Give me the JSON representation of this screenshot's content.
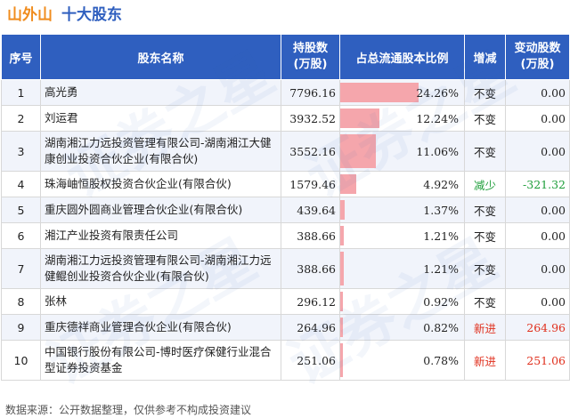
{
  "header": {
    "stock_name": "山外山",
    "subtitle": "十大股东"
  },
  "columns": [
    "序号",
    "股东名称",
    "持股数\n(万股)",
    "占总流通股本比例",
    "增减",
    "变动股数\n(万股)"
  ],
  "rows": [
    {
      "rank": "1",
      "name": "高光勇",
      "shares": "7796.16",
      "ratio_text": "24.26%",
      "ratio": 24.26,
      "change": "不变",
      "change_type": "same",
      "delta": "0.00"
    },
    {
      "rank": "2",
      "name": "刘运君",
      "shares": "3932.52",
      "ratio_text": "12.24%",
      "ratio": 12.24,
      "change": "不变",
      "change_type": "same",
      "delta": "0.00"
    },
    {
      "rank": "3",
      "name": "湖南湘江力远投资管理有限公司-湖南湘江大健康创业投资合伙企业(有限合伙)",
      "shares": "3552.16",
      "ratio_text": "11.06%",
      "ratio": 11.06,
      "change": "不变",
      "change_type": "same",
      "delta": "0.00"
    },
    {
      "rank": "4",
      "name": "珠海岫恒股权投资合伙企业(有限合伙)",
      "shares": "1579.46",
      "ratio_text": "4.92%",
      "ratio": 4.92,
      "change": "减少",
      "change_type": "down",
      "delta": "-321.32"
    },
    {
      "rank": "5",
      "name": "重庆圆外圆商业管理合伙企业(有限合伙)",
      "shares": "439.64",
      "ratio_text": "1.37%",
      "ratio": 1.37,
      "change": "不变",
      "change_type": "same",
      "delta": "0.00"
    },
    {
      "rank": "6",
      "name": "湘江产业投资有限责任公司",
      "shares": "388.66",
      "ratio_text": "1.21%",
      "ratio": 1.21,
      "change": "不变",
      "change_type": "same",
      "delta": "0.00"
    },
    {
      "rank": "7",
      "name": "湖南湘江力远投资管理有限公司-湖南湘江力远健鲲创业投资合伙企业(有限合伙)",
      "shares": "388.66",
      "ratio_text": "1.21%",
      "ratio": 1.21,
      "change": "不变",
      "change_type": "same",
      "delta": "0.00"
    },
    {
      "rank": "8",
      "name": "张林",
      "shares": "296.12",
      "ratio_text": "0.92%",
      "ratio": 0.92,
      "change": "不变",
      "change_type": "same",
      "delta": "0.00"
    },
    {
      "rank": "9",
      "name": "重庆德祥商业管理合伙企业(有限合伙)",
      "shares": "264.96",
      "ratio_text": "0.82%",
      "ratio": 0.82,
      "change": "新进",
      "change_type": "new",
      "delta": "264.96"
    },
    {
      "rank": "10",
      "name": "中国银行股份有限公司-博时医疗保健行业混合型证券投资基金",
      "shares": "251.06",
      "ratio_text": "0.78%",
      "ratio": 0.78,
      "change": "新进",
      "change_type": "new",
      "delta": "251.06"
    }
  ],
  "ratio_max": 24.26,
  "footer": "数据来源：公开数据整理，仅供参考不构成投资建议",
  "watermark": "证券之星",
  "colors": {
    "header_bg": "#2f5fbf",
    "bar": "#f5a6ac",
    "down": "#1e9e3a",
    "new": "#e0301e",
    "stock": "#f08c1e"
  }
}
